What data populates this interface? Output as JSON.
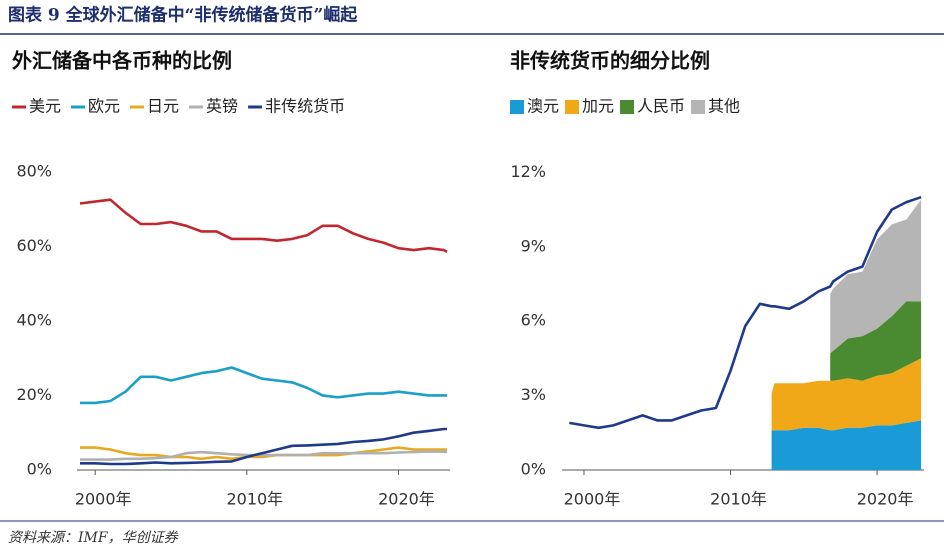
{
  "title": "图表 9 全球外汇储备中“非传统储备货币”崛起",
  "source": "资料来源：IMF，华创证券",
  "chart_data": [
    {
      "type": "line",
      "title": "外汇储备中各币种的比例",
      "x": [
        1999,
        2000,
        2001,
        2002,
        2003,
        2004,
        2005,
        2006,
        2007,
        2008,
        2009,
        2010,
        2011,
        2012,
        2013,
        2014,
        2015,
        2016,
        2017,
        2018,
        2019,
        2020,
        2021,
        2022,
        2023,
        2023.2
      ],
      "xlim": [
        1998.8,
        2023.4
      ],
      "xticks": [
        {
          "value": 2000,
          "label": "2000年"
        },
        {
          "value": 2010,
          "label": "2010年"
        },
        {
          "value": 2020,
          "label": "2020年"
        }
      ],
      "ylim": [
        0,
        84.5
      ],
      "yticks": [
        {
          "value": 0,
          "label": "0%"
        },
        {
          "value": 20,
          "label": "20%"
        },
        {
          "value": 40,
          "label": "40%"
        },
        {
          "value": 60,
          "label": "60%"
        },
        {
          "value": 80,
          "label": "80%"
        }
      ],
      "grid": false,
      "series": [
        {
          "name": "美元",
          "color": "#c0282d",
          "values": [
            71.5,
            72,
            72.5,
            69,
            66,
            66,
            66.5,
            65.5,
            64,
            64,
            62,
            62,
            62,
            61.5,
            62,
            63,
            65.5,
            65.5,
            63.5,
            62,
            61,
            59.5,
            59,
            59.5,
            59,
            58.5
          ]
        },
        {
          "name": "欧元",
          "color": "#1aa0c8",
          "values": [
            18,
            18,
            18.5,
            21,
            25,
            25,
            24,
            25,
            26,
            26.5,
            27.5,
            26,
            24.5,
            24,
            23.5,
            22,
            20,
            19.5,
            20,
            20.5,
            20.5,
            21,
            20.5,
            20,
            20,
            20
          ]
        },
        {
          "name": "日元",
          "color": "#e8a820",
          "values": [
            6,
            6,
            5.5,
            4.5,
            4,
            4,
            3.5,
            3.5,
            3,
            3.5,
            3,
            3.5,
            3.5,
            4,
            4,
            4,
            4,
            4,
            4.5,
            5,
            5.5,
            6,
            5.5,
            5.5,
            5.5,
            5.5
          ]
        },
        {
          "name": "英镑",
          "color": "#b0b0b0",
          "values": [
            2.8,
            2.8,
            2.8,
            3,
            3,
            3.2,
            3.5,
            4.5,
            4.8,
            4.5,
            4.2,
            4,
            4,
            4,
            4,
            4,
            4.5,
            4.5,
            4.5,
            4.5,
            4.5,
            4.7,
            4.8,
            5,
            4.9,
            4.8
          ]
        },
        {
          "name": "非传统货币",
          "color": "#1f3a8a",
          "values": [
            1.8,
            1.8,
            1.6,
            1.6,
            1.8,
            2,
            1.8,
            1.9,
            2,
            2.2,
            2.3,
            3.5,
            4.5,
            5.5,
            6.5,
            6.6,
            6.8,
            7,
            7.5,
            7.8,
            8.2,
            9,
            10,
            10.5,
            11,
            11
          ]
        }
      ]
    },
    {
      "type": "stacked_area",
      "title": "非传统货币的细分比例",
      "x": [
        1999,
        2000,
        2001,
        2002,
        2003,
        2004,
        2005,
        2006,
        2007,
        2008,
        2009,
        2010,
        2011,
        2012,
        2012.8,
        2013,
        2014,
        2015,
        2016,
        2016.8,
        2017,
        2018,
        2019,
        2020,
        2021,
        2022,
        2023
      ],
      "xlim": [
        1998.5,
        2023.2
      ],
      "xticks": [
        {
          "value": 2000,
          "label": "2000年"
        },
        {
          "value": 2010,
          "label": "2010年"
        },
        {
          "value": 2020,
          "label": "2020年"
        }
      ],
      "ylim": [
        0,
        12.7
      ],
      "yticks": [
        {
          "value": 0,
          "label": "0%"
        },
        {
          "value": 3,
          "label": "3%"
        },
        {
          "value": 6,
          "label": "6%"
        },
        {
          "value": 9,
          "label": "9%"
        },
        {
          "value": 12,
          "label": "12%"
        }
      ],
      "grid": false,
      "series": [
        {
          "name": "澳元",
          "color": "#1a9ad6",
          "values": [
            null,
            null,
            null,
            null,
            null,
            null,
            null,
            null,
            null,
            null,
            null,
            null,
            null,
            null,
            1.6,
            1.6,
            1.6,
            1.7,
            1.7,
            1.6,
            1.6,
            1.7,
            1.7,
            1.8,
            1.8,
            1.9,
            2.0
          ]
        },
        {
          "name": "加元",
          "color": "#f0a818",
          "values": [
            null,
            null,
            null,
            null,
            null,
            null,
            null,
            null,
            null,
            null,
            null,
            null,
            null,
            null,
            1.5,
            1.9,
            1.9,
            1.8,
            1.9,
            2.0,
            2.0,
            2.0,
            1.9,
            2.0,
            2.1,
            2.3,
            2.5
          ]
        },
        {
          "name": "人民币",
          "color": "#4a8a30",
          "values": [
            null,
            null,
            null,
            null,
            null,
            null,
            null,
            null,
            null,
            null,
            null,
            null,
            null,
            null,
            null,
            null,
            null,
            null,
            null,
            1.1,
            1.2,
            1.6,
            1.8,
            1.9,
            2.3,
            2.6,
            2.3
          ]
        },
        {
          "name": "其他",
          "color": "#b5b5b5",
          "values": [
            null,
            null,
            null,
            null,
            null,
            null,
            null,
            null,
            null,
            null,
            null,
            null,
            null,
            null,
            null,
            null,
            null,
            null,
            null,
            2.4,
            2.5,
            2.6,
            2.6,
            3.6,
            3.7,
            3.3,
            4.1
          ]
        }
      ],
      "total_line": {
        "color": "#1f3a8a",
        "values": [
          1.9,
          1.8,
          1.7,
          1.8,
          2.0,
          2.2,
          2.0,
          2.0,
          2.2,
          2.4,
          2.5,
          4.0,
          5.8,
          6.7,
          6.6,
          6.6,
          6.5,
          6.8,
          7.2,
          7.4,
          7.6,
          8.0,
          8.2,
          9.6,
          10.5,
          10.8,
          11.0
        ]
      }
    }
  ]
}
